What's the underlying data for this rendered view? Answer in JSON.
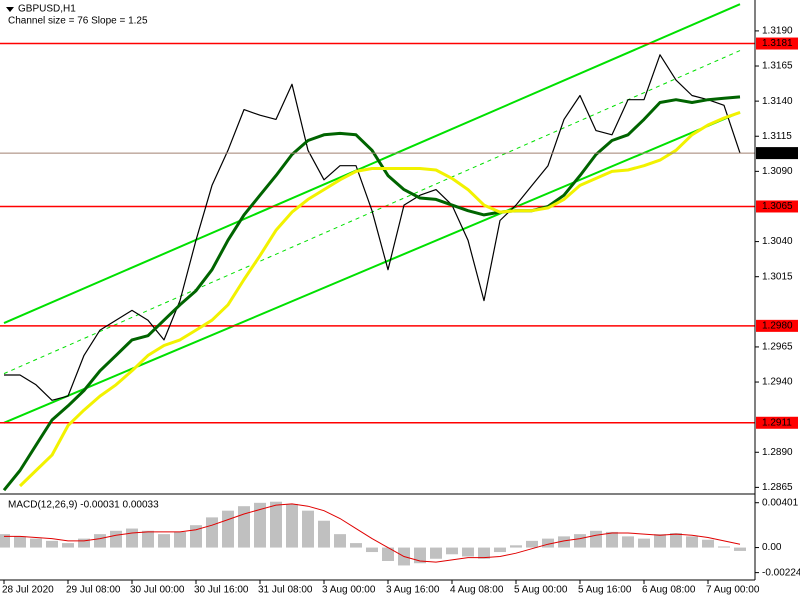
{
  "chart_data": [
    {
      "type": "line",
      "title": "GBPUSD,H1",
      "subtitle": "Channel size = 76 Slope = 1.25",
      "categories": [
        "28 Jul 2020",
        null,
        null,
        null,
        "29 Jul 08:00",
        null,
        null,
        null,
        "30 Jul 00:00",
        null,
        null,
        null,
        "30 Jul 16:00",
        null,
        null,
        null,
        "31 Jul 08:00",
        null,
        null,
        null,
        "3 Aug 00:00",
        null,
        null,
        null,
        "3 Aug 16:00",
        null,
        null,
        null,
        "4 Aug 08:00",
        null,
        null,
        null,
        "5 Aug 00:00",
        null,
        null,
        null,
        "5 Aug 16:00",
        null,
        null,
        null,
        "6 Aug 08:00",
        null,
        null,
        null,
        "7 Aug 00:00",
        null,
        null
      ],
      "series": [
        {
          "color": "#000000",
          "values": [
            1.2945,
            1.2945,
            1.2938,
            1.2927,
            1.293,
            1.2959,
            1.2977,
            1.2984,
            1.2991,
            1.2984,
            1.297,
            1.2998,
            1.3041,
            1.308,
            1.3105,
            1.3134,
            1.313,
            1.3127,
            1.3152,
            1.3105,
            1.3084,
            1.3094,
            1.3094,
            1.3062,
            1.302,
            1.3066,
            1.3073,
            1.3077,
            1.3066,
            1.3041,
            1.2998,
            1.3055,
            1.3066,
            1.308,
            1.3094,
            1.3127,
            1.3144,
            1.3119,
            1.3116,
            1.3141,
            1.3141,
            1.3173,
            1.3155,
            1.3144,
            1.3141,
            1.3137,
            1.3103
          ]
        },
        {
          "color": "#006400",
          "values": [
            1.2863,
            1.2877,
            1.2895,
            1.2913,
            1.2923,
            1.2934,
            1.2948,
            1.2959,
            1.297,
            1.2973,
            1.2984,
            1.2995,
            1.3005,
            1.302,
            1.3041,
            1.3059,
            1.3073,
            1.3087,
            1.3102,
            1.3112,
            1.3116,
            1.3117,
            1.3116,
            1.3105,
            1.3087,
            1.3077,
            1.3071,
            1.307,
            1.3066,
            1.3062,
            1.3059,
            1.3061,
            1.3062,
            1.3062,
            1.3065,
            1.3073,
            1.3087,
            1.3102,
            1.3112,
            1.3116,
            1.3127,
            1.3139,
            1.3141,
            1.3139,
            1.3141,
            1.3142,
            1.3143
          ]
        },
        {
          "color": "#f2f200",
          "values": [
            null,
            1.2866,
            1.2877,
            1.2888,
            1.2909,
            1.292,
            1.293,
            1.2938,
            1.2948,
            1.2959,
            1.2966,
            1.297,
            1.2977,
            1.2984,
            1.2995,
            1.3013,
            1.303,
            1.3048,
            1.3061,
            1.307,
            1.3077,
            1.3084,
            1.309,
            1.3092,
            1.3092,
            1.3092,
            1.3092,
            1.3091,
            1.3085,
            1.3077,
            1.3066,
            1.3061,
            1.3062,
            1.3062,
            1.3064,
            1.307,
            1.308,
            1.3085,
            1.309,
            1.3091,
            1.3094,
            1.3098,
            1.3105,
            1.3116,
            1.3123,
            1.3128,
            1.3132
          ]
        }
      ],
      "channel": {
        "color": "#00e000",
        "upper": [
          1.2982,
          1.3209
        ],
        "middle": [
          1.2946,
          1.3176
        ],
        "lower": [
          1.2911,
          1.3132
        ]
      },
      "levels": [
        1.3181,
        1.3065,
        {
          "value": 1.298,
          "label": "1.2980"
        },
        1.2911
      ],
      "level_color": "#ff0000",
      "current_price": 1.3103,
      "ylim": [
        1.2861,
        1.3212
      ],
      "yticks": [
        {
          "value": 1.319,
          "label": "1.3190"
        },
        1.3165,
        {
          "value": 1.314,
          "label": "1.3140"
        },
        1.3115,
        {
          "value": 1.309,
          "label": "1.3090"
        },
        {
          "value": 1.304,
          "label": "1.3040"
        },
        1.3015,
        1.2965,
        {
          "value": 1.294,
          "label": "1.2940"
        },
        {
          "value": 1.289,
          "label": "1.2890"
        },
        1.2865
      ]
    },
    {
      "type": "bar",
      "title": "MACD(12,26,9) -0.00031 0.00033",
      "color": "#c0c0c0",
      "values": [
        0.0012,
        0.001,
        0.0008,
        0.0006,
        0.0004,
        0.0008,
        0.0012,
        0.0015,
        0.0017,
        0.0015,
        0.0012,
        0.0014,
        0.002,
        0.0027,
        0.0033,
        0.0037,
        0.004,
        0.0041,
        0.0039,
        0.0033,
        0.0024,
        0.0012,
        0.0004,
        -0.0004,
        -0.0012,
        -0.0016,
        -0.0014,
        -0.001,
        -0.0006,
        -0.0008,
        -0.001,
        -0.0004,
        0.0002,
        0.0006,
        0.0008,
        0.001,
        0.0012,
        0.0015,
        0.0014,
        0.001,
        0.0008,
        0.0012,
        0.0013,
        0.001,
        0.0007,
        0.0001,
        -0.0003
      ],
      "signal": {
        "color": "#e00000",
        "values": [
          0.001,
          0.001,
          0.0009,
          0.0008,
          0.0006,
          0.0006,
          0.0008,
          0.0011,
          0.0013,
          0.0014,
          0.0014,
          0.0014,
          0.0016,
          0.002,
          0.0025,
          0.003,
          0.0034,
          0.0038,
          0.0039,
          0.0037,
          0.0033,
          0.0026,
          0.0017,
          0.0008,
          0.0,
          -0.0008,
          -0.0012,
          -0.0013,
          -0.0011,
          -0.0009,
          -0.0009,
          -0.0008,
          -0.0005,
          -0.0001,
          0.0003,
          0.0006,
          0.0008,
          0.0011,
          0.0013,
          0.0013,
          0.0012,
          0.0011,
          0.0012,
          0.0011,
          0.0009,
          0.0006,
          0.0003
        ]
      },
      "ylim": [
        -0.0029,
        0.0047
      ],
      "yticks": [
        0.00401,
        {
          "value": 0,
          "label": "0.00"
        },
        -0.00224
      ]
    }
  ]
}
